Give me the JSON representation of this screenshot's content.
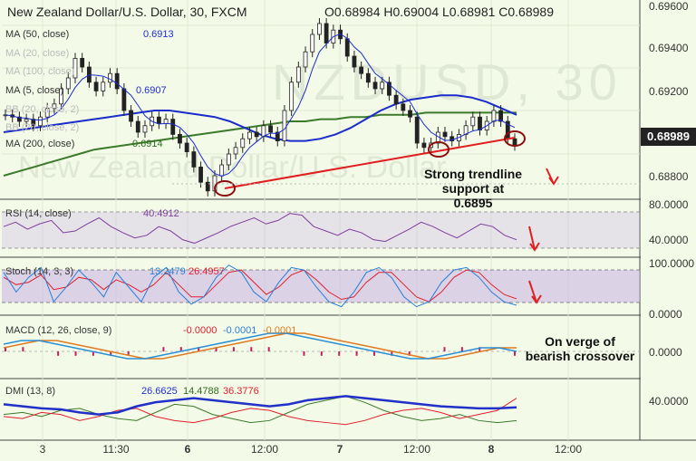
{
  "header": {
    "title": "New Zealand Dollar/U.S. Dollar, 30, FXCM",
    "ohlc": "O0.68984 H0.69004 L0.68981 C0.68989",
    "watermark_top": "NZDUSD, 30",
    "watermark_bottom": "New Zealand Dollar/U.S. Dollar"
  },
  "overlays": [
    {
      "label": "MA (50, close)",
      "value": "0.6913",
      "color": "#1f2fd0"
    },
    {
      "label": "MA (20, close)",
      "value": "",
      "color": "#888888"
    },
    {
      "label": "MA (100, close)",
      "value": "",
      "color": "#888888"
    },
    {
      "label": "MA (5, close)",
      "value": "0.6907",
      "color": "#1f2fd0"
    },
    {
      "label": "BB (20, close, 2)",
      "value": "",
      "color": "#888888"
    },
    {
      "label": "BB (20, close, 2)",
      "value": "",
      "color": "#888888"
    },
    {
      "label": "MA (200, close)",
      "value": "0.6914",
      "color": "#2e6b1e"
    }
  ],
  "price_axis": [
    "0.69600",
    "0.69400",
    "0.69200",
    "0.68989",
    "0.68800"
  ],
  "current_price": "0.68989",
  "annotations": {
    "support": "Strong trendline support at 0.6895",
    "support_lines": [
      "Strong trendline",
      "support at 0.6895"
    ],
    "macd": [
      "On verge of",
      "bearish crossover"
    ]
  },
  "rsi": {
    "label": "RSI (14, close)",
    "value": "40.4912",
    "axis": [
      "80.0000",
      "40.0000"
    ]
  },
  "stoch": {
    "label": "Stoch (14, 3, 3)",
    "k": "13.2479",
    "d": "26.4957",
    "axis": [
      "100.0000",
      "0.0000"
    ]
  },
  "macd": {
    "label": "MACD (12, 26, close, 9)",
    "v1": "-0.0000",
    "v2": "-0.0001",
    "v3": "-0.0001",
    "axis": [
      "0.0000"
    ]
  },
  "dmi": {
    "label": "DMI (13, 8)",
    "v1": "26.6625",
    "v2": "14.4788",
    "v3": "36.3776",
    "axis": [
      "40.0000"
    ]
  },
  "x_axis": [
    "3",
    "11:30",
    "6",
    "12:00",
    "7",
    "12:00",
    "8",
    "12:00"
  ],
  "colors": {
    "ma50": "#1a2ccc",
    "ma200": "#3a7a2a",
    "ma5": "#1a2ccc",
    "trend": "#e02020",
    "candle": "#222222",
    "rsi": "#7d3e9e",
    "band": "#c9b7e4",
    "stochK": "#2a7fd6",
    "stochD": "#e0202e",
    "macdLine": "#2a8fd6",
    "signal": "#e07a20"
  },
  "chart_data": {
    "type": "line",
    "title": "New Zealand Dollar/U.S. Dollar, 30, FXCM",
    "y_range": [
      0.6875,
      0.6965
    ],
    "current": 0.68989,
    "trendline": {
      "from": 0.6874,
      "to": 0.6898
    },
    "support_level": 0.6895,
    "close": [
      0.6913,
      0.6912,
      0.691,
      0.6911,
      0.6908,
      0.6912,
      0.6916,
      0.6918,
      0.6925,
      0.693,
      0.6939,
      0.6935,
      0.6928,
      0.6924,
      0.6928,
      0.6932,
      0.6925,
      0.6915,
      0.691,
      0.6905,
      0.6908,
      0.6912,
      0.6909,
      0.6911,
      0.6904,
      0.69,
      0.6896,
      0.6889,
      0.6882,
      0.6878,
      0.6885,
      0.689,
      0.6895,
      0.6898,
      0.6902,
      0.6905,
      0.6903,
      0.6908,
      0.6905,
      0.6901,
      0.6915,
      0.6928,
      0.6935,
      0.6942,
      0.695,
      0.6955,
      0.6946,
      0.6952,
      0.6948,
      0.694,
      0.6935,
      0.6932,
      0.6928,
      0.6925,
      0.6928,
      0.6922,
      0.6918,
      0.6915,
      0.6912,
      0.69,
      0.6898,
      0.69,
      0.6905,
      0.6903,
      0.6901,
      0.6904,
      0.6908,
      0.6912,
      0.6906,
      0.691,
      0.6915,
      0.691,
      0.6902,
      0.6899
    ],
    "ma50": [
      0.6905,
      0.6906,
      0.6907,
      0.6908,
      0.6909,
      0.691,
      0.6911,
      0.6912,
      0.6913,
      0.6914,
      0.6915,
      0.6915,
      0.6914,
      0.6913,
      0.6912,
      0.691,
      0.6907,
      0.6904,
      0.6902,
      0.6901,
      0.6901,
      0.6902,
      0.6904,
      0.6907,
      0.6911,
      0.6915,
      0.6918,
      0.692,
      0.6921,
      0.6922,
      0.6922,
      0.6921,
      0.6919,
      0.6916,
      0.6913
    ],
    "ma200": [
      0.6885,
      0.6887,
      0.6889,
      0.6891,
      0.6893,
      0.6895,
      0.6897,
      0.6898,
      0.6899,
      0.69,
      0.6901,
      0.6902,
      0.6903,
      0.6904,
      0.6905,
      0.6906,
      0.6907,
      0.6908,
      0.6909,
      0.691,
      0.691,
      0.6911,
      0.6911,
      0.6912,
      0.6912,
      0.6913,
      0.6913,
      0.6913,
      0.6914,
      0.6914,
      0.6914,
      0.6914,
      0.6914,
      0.6914,
      0.6914
    ],
    "rsi": [
      55,
      60,
      52,
      58,
      62,
      48,
      50,
      58,
      65,
      55,
      48,
      42,
      45,
      55,
      50,
      40,
      36,
      42,
      48,
      55,
      60,
      65,
      58,
      62,
      70,
      68,
      55,
      50,
      45,
      52,
      48,
      40,
      38,
      45,
      52,
      60,
      55,
      48,
      42,
      50,
      58,
      55,
      45,
      40
    ],
    "stoch_k": [
      80,
      40,
      70,
      90,
      20,
      50,
      85,
      60,
      30,
      80,
      50,
      20,
      70,
      90,
      40,
      15,
      30,
      70,
      95,
      80,
      40,
      20,
      60,
      90,
      85,
      50,
      20,
      10,
      40,
      80,
      90,
      70,
      30,
      10,
      20,
      60,
      85,
      90,
      70,
      40,
      20,
      13
    ],
    "stoch_d": [
      70,
      55,
      60,
      75,
      45,
      50,
      70,
      65,
      45,
      65,
      55,
      40,
      55,
      80,
      55,
      30,
      30,
      55,
      80,
      85,
      60,
      35,
      50,
      75,
      85,
      65,
      40,
      25,
      30,
      60,
      80,
      80,
      55,
      30,
      20,
      40,
      70,
      85,
      80,
      55,
      35,
      26
    ],
    "macd": [
      0.0002,
      0.0003,
      0.0003,
      0.0002,
      0.0001,
      0.0,
      -0.0001,
      -0.0002,
      -0.0002,
      -0.0001,
      0.0,
      0.0001,
      0.0002,
      0.0003,
      0.0004,
      0.0005,
      0.0005,
      0.0004,
      0.0003,
      0.0002,
      0.0001,
      0.0,
      -0.0001,
      -0.0002,
      -0.0002,
      -0.0001,
      0.0,
      0.0001,
      0.0001,
      0.0
    ],
    "signal": [
      0.0001,
      0.0002,
      0.0003,
      0.0003,
      0.0002,
      0.0001,
      0.0,
      -0.0001,
      -0.0002,
      -0.0002,
      -0.0001,
      0.0,
      0.0001,
      0.0002,
      0.0003,
      0.0004,
      0.0005,
      0.0005,
      0.0004,
      0.0003,
      0.0002,
      0.0001,
      0.0,
      -0.0001,
      -0.0002,
      -0.0002,
      -0.0001,
      0.0,
      0.0001,
      0.0001
    ],
    "dmi_adx": [
      30,
      28,
      26,
      25,
      22,
      20,
      22,
      28,
      32,
      34,
      36,
      34,
      32,
      30,
      28,
      30,
      34,
      36,
      38,
      36,
      34,
      32,
      30,
      28,
      27,
      26,
      26,
      27
    ],
    "dmi_plus": [
      20,
      22,
      18,
      24,
      26,
      20,
      16,
      14,
      22,
      30,
      28,
      20,
      16,
      12,
      14,
      22,
      30,
      34,
      38,
      32,
      24,
      18,
      14,
      16,
      20,
      14,
      12,
      14
    ],
    "dmi_minus": [
      18,
      16,
      22,
      20,
      14,
      18,
      24,
      26,
      18,
      14,
      12,
      16,
      22,
      26,
      24,
      18,
      14,
      12,
      10,
      14,
      20,
      24,
      26,
      22,
      16,
      20,
      24,
      36
    ]
  }
}
